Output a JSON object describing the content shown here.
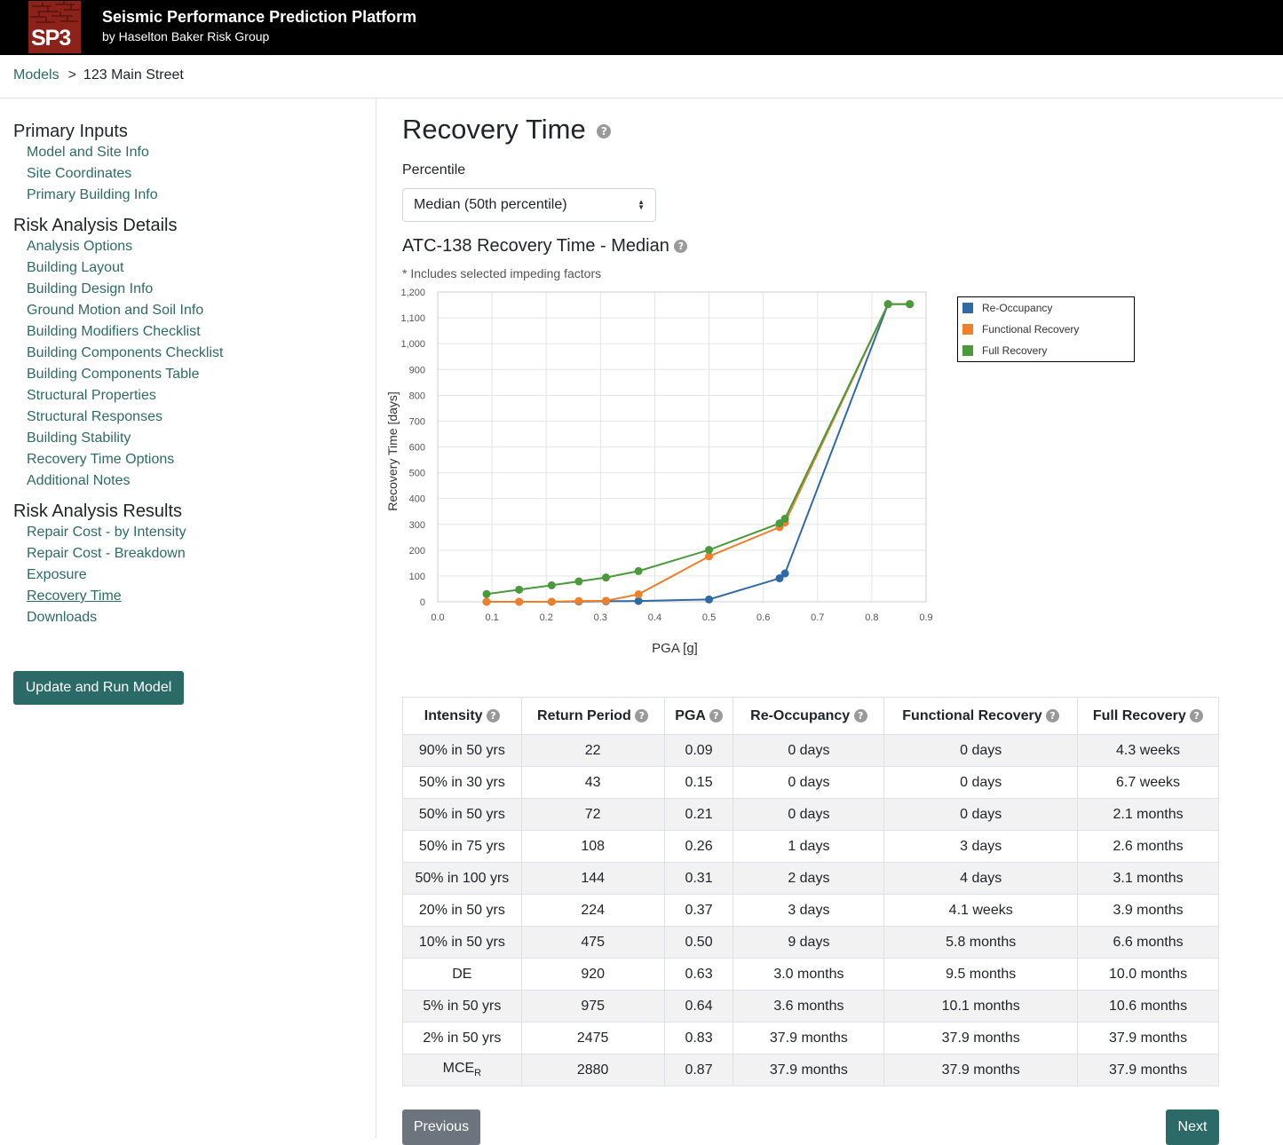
{
  "header": {
    "logo_text": "SP3",
    "title": "Seismic Performance Prediction Platform",
    "subtitle": "by Haselton Baker Risk Group"
  },
  "breadcrumb": {
    "root": "Models",
    "separator": ">",
    "current": "123 Main Street"
  },
  "sidebar": {
    "sections": [
      {
        "title": "Primary Inputs",
        "items": [
          "Model and Site Info",
          "Site Coordinates",
          "Primary Building Info"
        ]
      },
      {
        "title": "Risk Analysis Details",
        "items": [
          "Analysis Options",
          "Building Layout",
          "Building Design Info",
          "Ground Motion and Soil Info",
          "Building Modifiers Checklist",
          "Building Components Checklist",
          "Building Components Table",
          "Structural Properties",
          "Structural Responses",
          "Building Stability",
          "Recovery Time Options",
          "Additional Notes"
        ]
      },
      {
        "title": "Risk Analysis Results",
        "items": [
          "Repair Cost - by Intensity",
          "Repair Cost - Breakdown",
          "Exposure",
          "Recovery Time",
          "Downloads"
        ]
      }
    ],
    "active_item": "Recovery Time",
    "run_button": "Update and Run Model"
  },
  "main": {
    "title": "Recovery Time",
    "percentile_label": "Percentile",
    "percentile_value": "Median (50th percentile)",
    "chart_title": "ATC-138 Recovery Time - Median",
    "chart_note": "* Includes selected impeding factors"
  },
  "chart_data": {
    "type": "line",
    "xlabel": "PGA [g]",
    "ylabel": "Recovery Time [days]",
    "xlim": [
      0.0,
      0.9
    ],
    "ylim": [
      0,
      1200
    ],
    "x_ticks": [
      "0.0",
      "0.1",
      "0.2",
      "0.3",
      "0.4",
      "0.5",
      "0.6",
      "0.7",
      "0.8",
      "0.9"
    ],
    "y_ticks": [
      "0",
      "100",
      "200",
      "300",
      "400",
      "500",
      "600",
      "700",
      "800",
      "900",
      "1,000",
      "1,100",
      "1,200"
    ],
    "grid": true,
    "legend_position": "right",
    "x": [
      0.09,
      0.15,
      0.21,
      0.26,
      0.31,
      0.37,
      0.5,
      0.63,
      0.64,
      0.83,
      0.87
    ],
    "series": [
      {
        "name": "Re-Occupancy",
        "color": "#2f6aa6",
        "values": [
          0,
          0,
          0,
          1,
          2,
          3,
          9,
          91,
          110,
          1153,
          1153
        ]
      },
      {
        "name": "Functional Recovery",
        "color": "#f07f2a",
        "values": [
          0,
          0,
          0,
          3,
          4,
          29,
          176,
          289,
          307,
          1153,
          1153
        ]
      },
      {
        "name": "Full Recovery",
        "color": "#4a9a3c",
        "values": [
          30,
          47,
          64,
          79,
          94,
          119,
          201,
          304,
          322,
          1153,
          1153
        ]
      }
    ]
  },
  "table": {
    "headers": [
      "Intensity",
      "Return Period",
      "PGA",
      "Re-Occupancy",
      "Functional Recovery",
      "Full Recovery"
    ],
    "rows": [
      [
        "90% in 50 yrs",
        "22",
        "0.09",
        "0 days",
        "0 days",
        "4.3 weeks"
      ],
      [
        "50% in 30 yrs",
        "43",
        "0.15",
        "0 days",
        "0 days",
        "6.7 weeks"
      ],
      [
        "50% in 50 yrs",
        "72",
        "0.21",
        "0 days",
        "0 days",
        "2.1 months"
      ],
      [
        "50% in 75 yrs",
        "108",
        "0.26",
        "1 days",
        "3 days",
        "2.6 months"
      ],
      [
        "50% in 100 yrs",
        "144",
        "0.31",
        "2 days",
        "4 days",
        "3.1 months"
      ],
      [
        "20% in 50 yrs",
        "224",
        "0.37",
        "3 days",
        "4.1 weeks",
        "3.9 months"
      ],
      [
        "10% in 50 yrs",
        "475",
        "0.50",
        "9 days",
        "5.8 months",
        "6.6 months"
      ],
      [
        "DE",
        "920",
        "0.63",
        "3.0 months",
        "9.5 months",
        "10.0 months"
      ],
      [
        "5% in 50 yrs",
        "975",
        "0.64",
        "3.6 months",
        "10.1 months",
        "10.6 months"
      ],
      [
        "2% in 50 yrs",
        "2475",
        "0.83",
        "37.9 months",
        "37.9 months",
        "37.9 months"
      ],
      [
        "MCE",
        "2880",
        "0.87",
        "37.9 months",
        "37.9 months",
        "37.9 months"
      ]
    ],
    "mce_subscript": "R"
  },
  "footer": {
    "previous": "Previous",
    "next": "Next"
  },
  "help_icon": "?"
}
